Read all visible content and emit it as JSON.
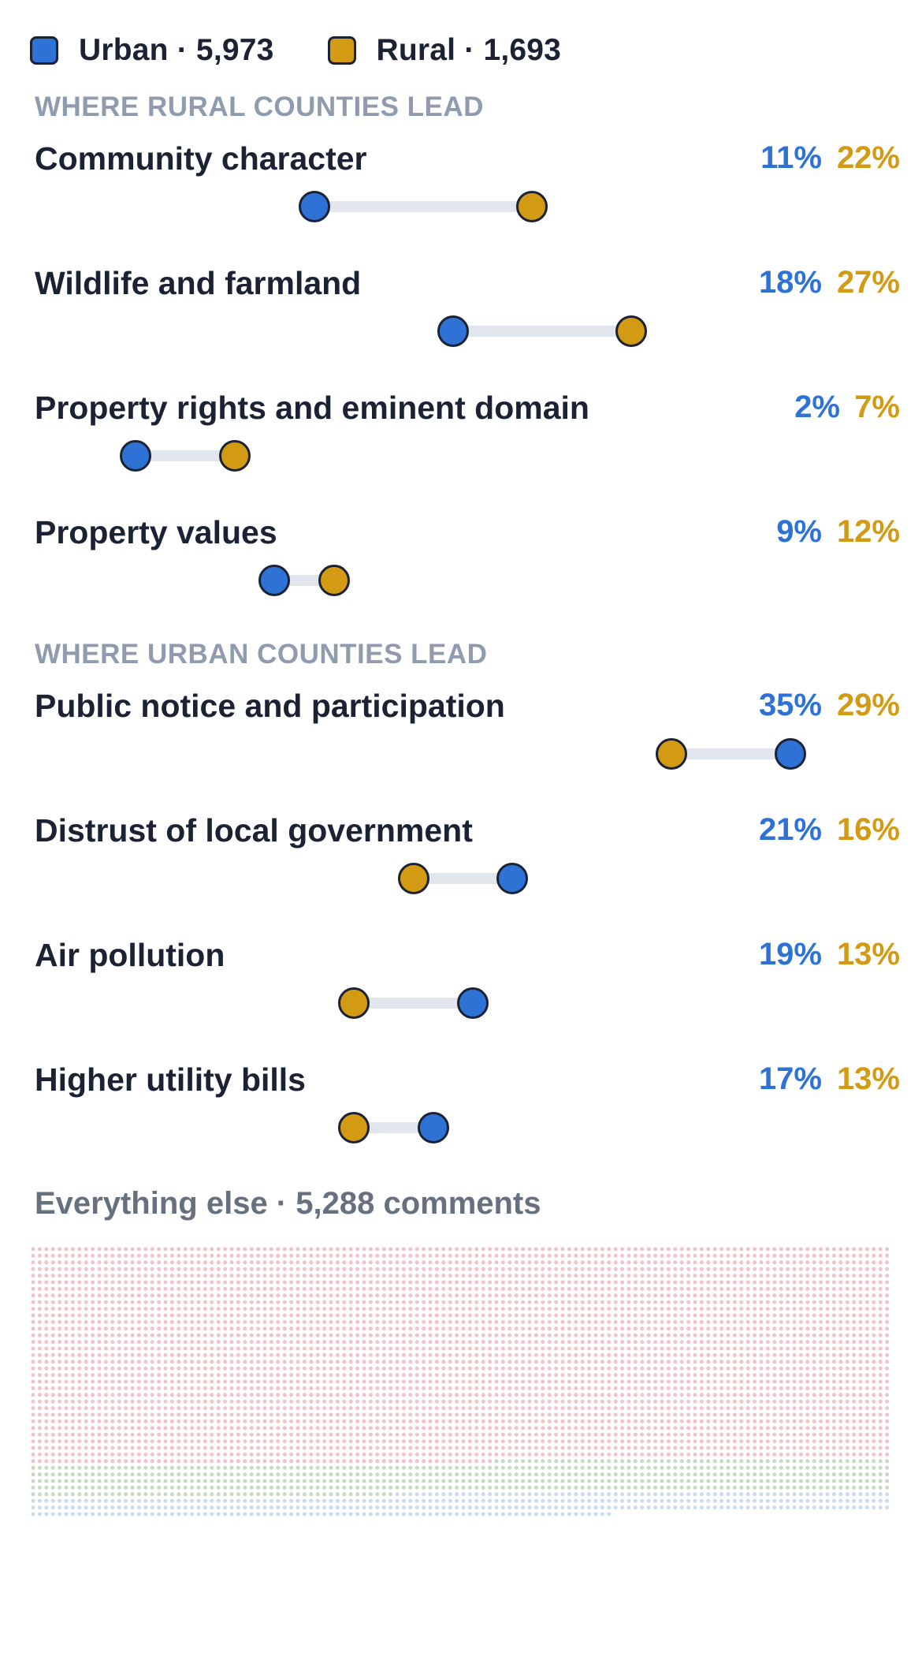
{
  "legend": {
    "urban_label": "Urban · 5,973",
    "rural_label": "Rural · 1,693"
  },
  "colors": {
    "urban": "#2f72d6",
    "rural": "#d39a14",
    "track": "#e2e6ed",
    "outline": "#1b2233",
    "waffle_pink": "#f2c4c9",
    "waffle_green": "#c6dcc0",
    "waffle_blue": "#c7dcf2"
  },
  "sections": {
    "rural_lead": "WHERE RURAL COUNTIES LEAD",
    "urban_lead": "WHERE URBAN COUNTIES LEAD"
  },
  "chart_data": {
    "type": "dumbbell",
    "series": [
      {
        "name": "Urban · 5,973",
        "key": "urban"
      },
      {
        "name": "Rural · 1,693",
        "key": "rural"
      }
    ],
    "rows": [
      {
        "group": "rural_lead",
        "label": "Community character",
        "urban": 11,
        "rural": 22,
        "urban_text": "11%",
        "rural_text": "22%"
      },
      {
        "group": "rural_lead",
        "label": "Wildlife and farmland",
        "urban": 18,
        "rural": 27,
        "urban_text": "18%",
        "rural_text": "27%"
      },
      {
        "group": "rural_lead",
        "label": "Property rights and eminent domain",
        "urban": 2,
        "rural": 7,
        "urban_text": "2%",
        "rural_text": "7%"
      },
      {
        "group": "rural_lead",
        "label": "Property values",
        "urban": 9,
        "rural": 12,
        "urban_text": "9%",
        "rural_text": "12%"
      },
      {
        "group": "urban_lead",
        "label": "Public notice and participation",
        "urban": 35,
        "rural": 29,
        "urban_text": "35%",
        "rural_text": "29%"
      },
      {
        "group": "urban_lead",
        "label": "Distrust of local government",
        "urban": 21,
        "rural": 16,
        "urban_text": "21%",
        "rural_text": "16%"
      },
      {
        "group": "urban_lead",
        "label": "Air pollution",
        "urban": 19,
        "rural": 13,
        "urban_text": "19%",
        "rural_text": "13%"
      },
      {
        "group": "urban_lead",
        "label": "Higher utility bills",
        "urban": 17,
        "rural": 13,
        "urban_text": "17%",
        "rural_text": "13%"
      }
    ],
    "xlim": [
      0,
      38
    ],
    "waffle": {
      "label": "Everything else · 5,288 comments",
      "count": 5288,
      "segments": [
        {
          "color": "waffle_pink",
          "share": 0.8
        },
        {
          "color": "waffle_green",
          "share": 0.12
        },
        {
          "color": "waffle_blue",
          "share": 0.08
        }
      ]
    }
  }
}
